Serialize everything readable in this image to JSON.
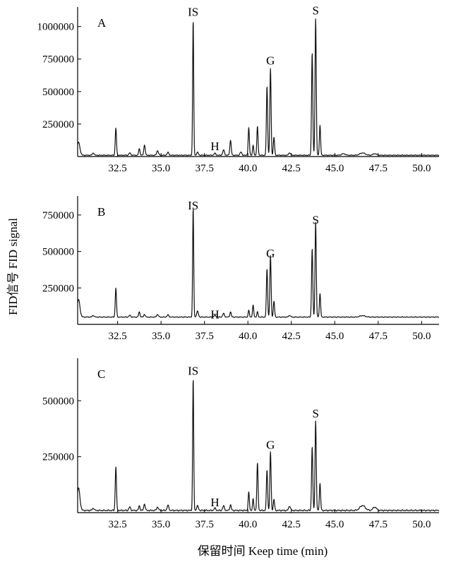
{
  "chart_data": {
    "type": "line",
    "xlabel": "保留时间 Keep time (min)",
    "ylabel": "FID信号 FID signal",
    "xlim": [
      30.2,
      51.0
    ],
    "x_ticks": [
      "32.5",
      "35.0",
      "37.5",
      "40.0",
      "42.5",
      "45.0",
      "47.5",
      "50.0"
    ],
    "x_tick_values": [
      32.5,
      35.0,
      37.5,
      40.0,
      42.5,
      45.0,
      47.5,
      50.0
    ],
    "panels": [
      {
        "label": "A",
        "ylim": [
          0,
          1150000
        ],
        "y_ticks": [
          "250000",
          "500000",
          "750000",
          "1000000"
        ],
        "y_tick_values": [
          250000,
          500000,
          750000,
          1000000
        ],
        "baseline": 10000,
        "peaks": [
          {
            "x": 30.25,
            "y": 100000,
            "w": 0.08
          },
          {
            "x": 31.1,
            "y": 18000,
            "w": 0.05
          },
          {
            "x": 32.4,
            "y": 210000,
            "w": 0.035
          },
          {
            "x": 33.2,
            "y": 18000,
            "w": 0.05
          },
          {
            "x": 33.75,
            "y": 50000,
            "w": 0.04
          },
          {
            "x": 34.05,
            "y": 80000,
            "w": 0.04
          },
          {
            "x": 34.8,
            "y": 35000,
            "w": 0.05
          },
          {
            "x": 35.4,
            "y": 22000,
            "w": 0.05
          },
          {
            "x": 36.85,
            "y": 1040000,
            "w": 0.03
          },
          {
            "x": 37.1,
            "y": 22000,
            "w": 0.05
          },
          {
            "x": 38.1,
            "y": 15000,
            "w": 0.05
          },
          {
            "x": 38.6,
            "y": 40000,
            "w": 0.05
          },
          {
            "x": 39.0,
            "y": 115000,
            "w": 0.04
          },
          {
            "x": 39.6,
            "y": 25000,
            "w": 0.05
          },
          {
            "x": 40.05,
            "y": 210000,
            "w": 0.035
          },
          {
            "x": 40.3,
            "y": 75000,
            "w": 0.035
          },
          {
            "x": 40.55,
            "y": 220000,
            "w": 0.035
          },
          {
            "x": 41.1,
            "y": 530000,
            "w": 0.035
          },
          {
            "x": 41.3,
            "y": 665000,
            "w": 0.035
          },
          {
            "x": 41.5,
            "y": 140000,
            "w": 0.035
          },
          {
            "x": 42.4,
            "y": 20000,
            "w": 0.05
          },
          {
            "x": 43.7,
            "y": 790000,
            "w": 0.035
          },
          {
            "x": 43.9,
            "y": 1050000,
            "w": 0.035
          },
          {
            "x": 44.15,
            "y": 230000,
            "w": 0.035
          },
          {
            "x": 45.5,
            "y": 12000,
            "w": 0.1
          },
          {
            "x": 46.6,
            "y": 18000,
            "w": 0.15
          },
          {
            "x": 47.3,
            "y": 12000,
            "w": 0.1
          }
        ],
        "annotations": [
          {
            "text": "IS",
            "x": 36.85,
            "y": 1040000
          },
          {
            "text": "H",
            "x": 38.1,
            "y": 15000
          },
          {
            "text": "G",
            "x": 41.3,
            "y": 665000
          },
          {
            "text": "S",
            "x": 43.9,
            "y": 1050000
          }
        ]
      },
      {
        "label": "B",
        "ylim": [
          0,
          880000
        ],
        "y_ticks": [
          "250000",
          "500000",
          "750000"
        ],
        "y_tick_values": [
          250000,
          500000,
          750000
        ],
        "baseline": 50000,
        "peaks": [
          {
            "x": 30.25,
            "y": 120000,
            "w": 0.08
          },
          {
            "x": 31.1,
            "y": 12000,
            "w": 0.05
          },
          {
            "x": 32.4,
            "y": 200000,
            "w": 0.035
          },
          {
            "x": 33.2,
            "y": 12000,
            "w": 0.05
          },
          {
            "x": 33.75,
            "y": 35000,
            "w": 0.04
          },
          {
            "x": 34.05,
            "y": 20000,
            "w": 0.04
          },
          {
            "x": 34.8,
            "y": 18000,
            "w": 0.05
          },
          {
            "x": 35.4,
            "y": 15000,
            "w": 0.05
          },
          {
            "x": 36.85,
            "y": 750000,
            "w": 0.03
          },
          {
            "x": 37.1,
            "y": 40000,
            "w": 0.05
          },
          {
            "x": 38.1,
            "y": 12000,
            "w": 0.05
          },
          {
            "x": 38.6,
            "y": 25000,
            "w": 0.05
          },
          {
            "x": 39.0,
            "y": 35000,
            "w": 0.04
          },
          {
            "x": 40.05,
            "y": 45000,
            "w": 0.035
          },
          {
            "x": 40.3,
            "y": 80000,
            "w": 0.035
          },
          {
            "x": 40.55,
            "y": 35000,
            "w": 0.035
          },
          {
            "x": 41.1,
            "y": 330000,
            "w": 0.035
          },
          {
            "x": 41.3,
            "y": 420000,
            "w": 0.035
          },
          {
            "x": 41.5,
            "y": 110000,
            "w": 0.035
          },
          {
            "x": 42.4,
            "y": 12000,
            "w": 0.05
          },
          {
            "x": 43.7,
            "y": 470000,
            "w": 0.035
          },
          {
            "x": 43.9,
            "y": 650000,
            "w": 0.035
          },
          {
            "x": 44.15,
            "y": 160000,
            "w": 0.035
          },
          {
            "x": 46.6,
            "y": 10000,
            "w": 0.15
          }
        ],
        "annotations": [
          {
            "text": "IS",
            "x": 36.85,
            "y": 750000
          },
          {
            "text": "H",
            "x": 38.1,
            "y": 12000
          },
          {
            "text": "G",
            "x": 41.3,
            "y": 420000
          },
          {
            "text": "S",
            "x": 43.9,
            "y": 650000
          }
        ]
      },
      {
        "label": "C",
        "ylim": [
          0,
          690000
        ],
        "y_ticks": [
          "250000",
          "500000"
        ],
        "y_tick_values": [
          250000,
          500000
        ],
        "baseline": 10000,
        "peaks": [
          {
            "x": 30.25,
            "y": 100000,
            "w": 0.08
          },
          {
            "x": 31.1,
            "y": 10000,
            "w": 0.05
          },
          {
            "x": 32.4,
            "y": 195000,
            "w": 0.035
          },
          {
            "x": 33.2,
            "y": 15000,
            "w": 0.05
          },
          {
            "x": 33.75,
            "y": 20000,
            "w": 0.04
          },
          {
            "x": 34.05,
            "y": 30000,
            "w": 0.04
          },
          {
            "x": 34.8,
            "y": 15000,
            "w": 0.05
          },
          {
            "x": 35.4,
            "y": 22000,
            "w": 0.05
          },
          {
            "x": 36.85,
            "y": 590000,
            "w": 0.03
          },
          {
            "x": 37.1,
            "y": 20000,
            "w": 0.05
          },
          {
            "x": 38.1,
            "y": 10000,
            "w": 0.05
          },
          {
            "x": 38.6,
            "y": 20000,
            "w": 0.05
          },
          {
            "x": 39.0,
            "y": 25000,
            "w": 0.04
          },
          {
            "x": 40.05,
            "y": 80000,
            "w": 0.035
          },
          {
            "x": 40.3,
            "y": 50000,
            "w": 0.035
          },
          {
            "x": 40.55,
            "y": 210000,
            "w": 0.035
          },
          {
            "x": 41.1,
            "y": 180000,
            "w": 0.035
          },
          {
            "x": 41.3,
            "y": 260000,
            "w": 0.035
          },
          {
            "x": 41.5,
            "y": 50000,
            "w": 0.035
          },
          {
            "x": 42.4,
            "y": 20000,
            "w": 0.05
          },
          {
            "x": 43.7,
            "y": 285000,
            "w": 0.035
          },
          {
            "x": 43.9,
            "y": 400000,
            "w": 0.035
          },
          {
            "x": 44.15,
            "y": 120000,
            "w": 0.035
          },
          {
            "x": 46.6,
            "y": 22000,
            "w": 0.15
          },
          {
            "x": 47.3,
            "y": 15000,
            "w": 0.1
          }
        ],
        "annotations": [
          {
            "text": "IS",
            "x": 36.85,
            "y": 590000
          },
          {
            "text": "H",
            "x": 38.1,
            "y": 10000
          },
          {
            "text": "G",
            "x": 41.3,
            "y": 260000
          },
          {
            "text": "S",
            "x": 43.9,
            "y": 400000
          }
        ]
      }
    ]
  }
}
